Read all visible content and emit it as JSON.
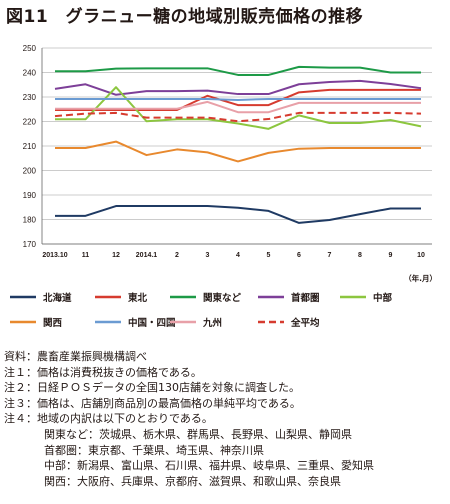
{
  "title": "図11　グラニュー糖の地域別販売価格の推移",
  "unit_label": "（年.月）",
  "chart_data": {
    "type": "line",
    "x": [
      "2013.10",
      "11",
      "12",
      "2014.1",
      "2",
      "3",
      "4",
      "5",
      "6",
      "7",
      "8",
      "9",
      "10"
    ],
    "ylim": [
      170,
      250
    ],
    "yticks": [
      170,
      180,
      190,
      200,
      210,
      220,
      230,
      240,
      250
    ],
    "series": [
      {
        "name": "北海道",
        "color": "#1f3a63",
        "dashed": false,
        "values": [
          181.5,
          181.5,
          185.5,
          185.5,
          185.5,
          185.5,
          184.8,
          183.5,
          178.6,
          179.8,
          182.2,
          184.5,
          184.5
        ]
      },
      {
        "name": "東北",
        "color": "#d63b2f",
        "dashed": false,
        "values": [
          224.7,
          224.7,
          224.7,
          224.7,
          224.7,
          230.5,
          226.7,
          226.7,
          231.9,
          232.9,
          232.9,
          232.9,
          232.9
        ]
      },
      {
        "name": "関東など",
        "color": "#1d9a47",
        "dashed": false,
        "values": [
          240.5,
          240.5,
          241.6,
          241.7,
          241.7,
          241.7,
          239.0,
          239.0,
          242.3,
          242.0,
          242.0,
          240.0,
          240.0
        ]
      },
      {
        "name": "首都圏",
        "color": "#7d3f98",
        "dashed": false,
        "values": [
          233.3,
          235.2,
          230.9,
          232.4,
          232.4,
          232.6,
          231.2,
          231.2,
          235.2,
          236.1,
          236.6,
          235.3,
          233.6
        ]
      },
      {
        "name": "中部",
        "color": "#8cc63f",
        "dashed": false,
        "values": [
          220.9,
          220.9,
          234.0,
          220.1,
          220.9,
          220.9,
          219.2,
          217.0,
          222.5,
          219.4,
          219.4,
          220.6,
          218.0
        ]
      },
      {
        "name": "関西",
        "color": "#e8892e",
        "dashed": false,
        "values": [
          209.2,
          209.2,
          211.8,
          206.3,
          208.6,
          207.4,
          203.7,
          207.2,
          208.9,
          209.2,
          209.2,
          209.2,
          209.2
        ]
      },
      {
        "name": "中国・四国",
        "color": "#6b9bd2",
        "dashed": false,
        "values": [
          229.2,
          229.2,
          229.2,
          229.2,
          229.2,
          229.2,
          228.8,
          229.2,
          229.2,
          229.2,
          229.2,
          229.2,
          229.2
        ]
      },
      {
        "name": "九州",
        "color": "#e8a0a8",
        "dashed": false,
        "values": [
          225.2,
          225.2,
          225.2,
          225.2,
          225.2,
          228.0,
          223.8,
          223.8,
          227.6,
          227.6,
          227.6,
          227.6,
          227.6
        ]
      },
      {
        "name": "全平均",
        "color": "#d63b2f",
        "dashed": true,
        "values": [
          222.2,
          223.2,
          223.5,
          221.6,
          221.6,
          221.6,
          220.1,
          221.0,
          223.5,
          223.5,
          223.5,
          223.5,
          223.2
        ]
      }
    ],
    "legend_placement": "bottom",
    "grid": true
  },
  "notes": [
    "資料：農畜産業振興機構調べ",
    "注１：価格は消費税抜きの価格である。",
    "注２：日経ＰＯＳデータの全国130店舗を対象に調査した。",
    "注３：価格は、店舗別商品別の最高価格の単純平均である。",
    "注４：地域の内訳は以下のとおりである。"
  ],
  "regions": [
    "関東など：茨城県、栃木県、群馬県、長野県、山梨県、静岡県",
    "首都圏：東京都、千葉県、埼玉県、神奈川県",
    "中部：新潟県、富山県、石川県、福井県、岐阜県、三重県、愛知県",
    "関西：大阪府、兵庫県、京都府、滋賀県、和歌山県、奈良県"
  ]
}
